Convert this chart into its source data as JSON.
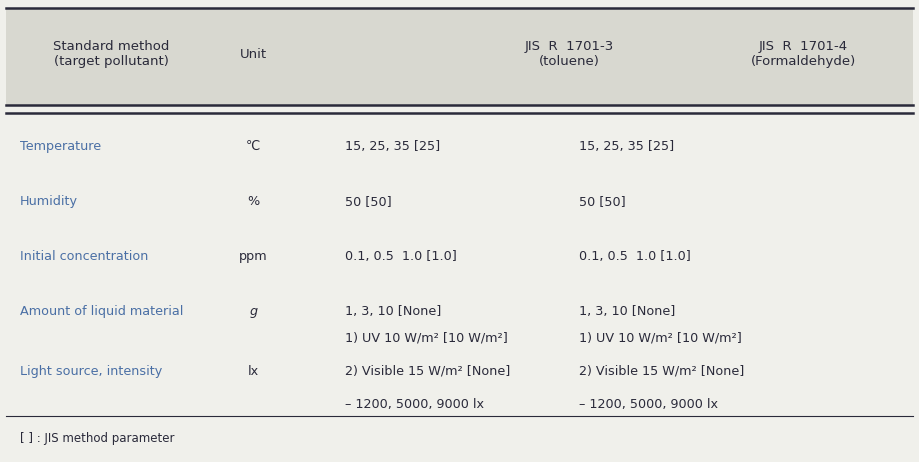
{
  "bg_color": "#f0f0eb",
  "header_bg": "#d8d8d0",
  "text_color_blue": "#4a6fa5",
  "text_color_dark": "#2a2a3a",
  "header_row": {
    "col1": "Standard method\n(target pollutant)",
    "col2": "Unit",
    "col3": "JIS  R  1701-3\n(toluene)",
    "col4": "JIS  R  1701-4\n(Formaldehyde)"
  },
  "rows": [
    {
      "param": "Temperature",
      "unit": "℃",
      "val1": "15, 25, 35 [25]",
      "val2": "15, 25, 35 [25]"
    },
    {
      "param": "Humidity",
      "unit": "%",
      "val1": "50 [50]",
      "val2": "50 [50]"
    },
    {
      "param": "Initial concentration",
      "unit": "ppm",
      "val1": "0.1, 0.5  1.0 [1.0]",
      "val2": "0.1, 0.5  1.0 [1.0]"
    },
    {
      "param": "Amount of liquid material",
      "unit": "g",
      "val1": "1, 3, 10 [None]",
      "val2": "1, 3, 10 [None]"
    },
    {
      "param": "Light source, intensity",
      "unit": "lx",
      "val1_line1": "1) UV 10 W/m² [10 W/m²]",
      "val1_line2": "2) Visible 15 W/m² [None]",
      "val1_line3": "– 1200, 5000, 9000 lx",
      "val2_line1": "1) UV 10 W/m² [10 W/m²]",
      "val2_line2": "2) Visible 15 W/m² [None]",
      "val2_line3": "– 1200, 5000, 9000 lx"
    }
  ],
  "footnote": "[ ] : JIS method parameter",
  "figsize": [
    9.19,
    4.62
  ],
  "dpi": 100
}
